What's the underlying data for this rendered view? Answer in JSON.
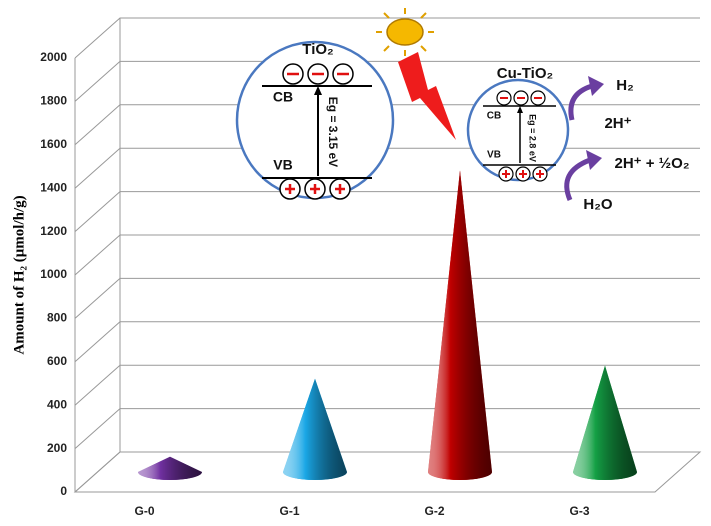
{
  "chart_data": {
    "type": "cone",
    "y_label": "Amount of H₂  (μmol/h/g)",
    "categories": [
      "G-0",
      "G-1",
      "G-2",
      "G-3"
    ],
    "values": [
      70,
      430,
      1390,
      490
    ],
    "colors": [
      "#7030a0",
      "#1aa7e6",
      "#c00000",
      "#14a045"
    ],
    "ylim": [
      0,
      2000
    ],
    "yticks": [
      0,
      200,
      400,
      600,
      800,
      1000,
      1200,
      1400,
      1600,
      1800,
      2000
    ],
    "grid": true,
    "annotations": [
      "TiO₂",
      "CB",
      "VB",
      "Eg = 3.15 eV",
      "Cu-TiO₂",
      "CB",
      "VB",
      "Eg = 2.8 eV",
      "H₂",
      "2H⁺",
      "2H⁺ + ½O₂",
      "H₂O"
    ]
  }
}
